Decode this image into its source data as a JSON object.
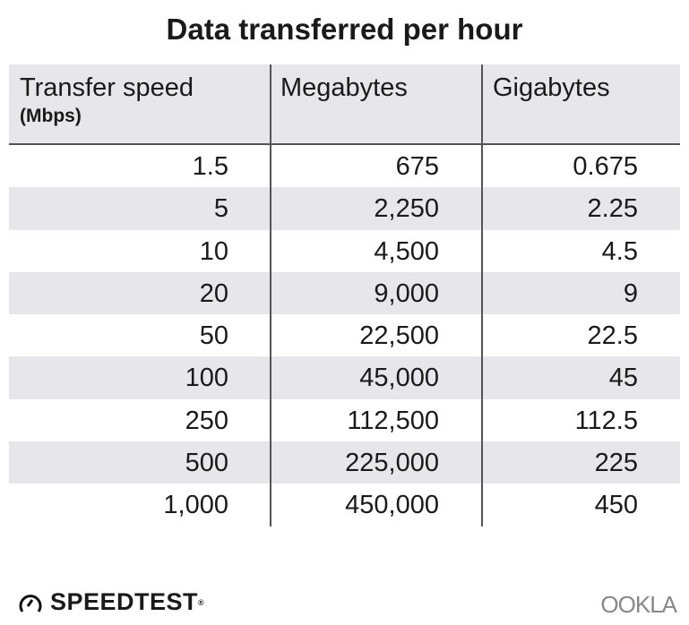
{
  "title": "Data transferred per hour",
  "headers": {
    "speed": "Transfer speed",
    "speed_unit": "(Mbps)",
    "mb": "Megabytes",
    "gb": "Gigabytes"
  },
  "rows": [
    [
      "1.5",
      "675",
      "0.675"
    ],
    [
      "5",
      "2,250",
      "2.25"
    ],
    [
      "10",
      "4,500",
      "4.5"
    ],
    [
      "20",
      "9,000",
      "9"
    ],
    [
      "50",
      "22,500",
      "22.5"
    ],
    [
      "100",
      "45,000",
      "45"
    ],
    [
      "250",
      "112,500",
      "112.5"
    ],
    [
      "500",
      "225,000",
      "225"
    ],
    [
      "1,000",
      "450,000",
      "450"
    ]
  ],
  "footer": {
    "brand": "SPEEDTEST",
    "brand_mark": "®",
    "company": "OOKLA"
  },
  "colors": {
    "stripe": "#e7e7eb",
    "rule": "#555555"
  }
}
